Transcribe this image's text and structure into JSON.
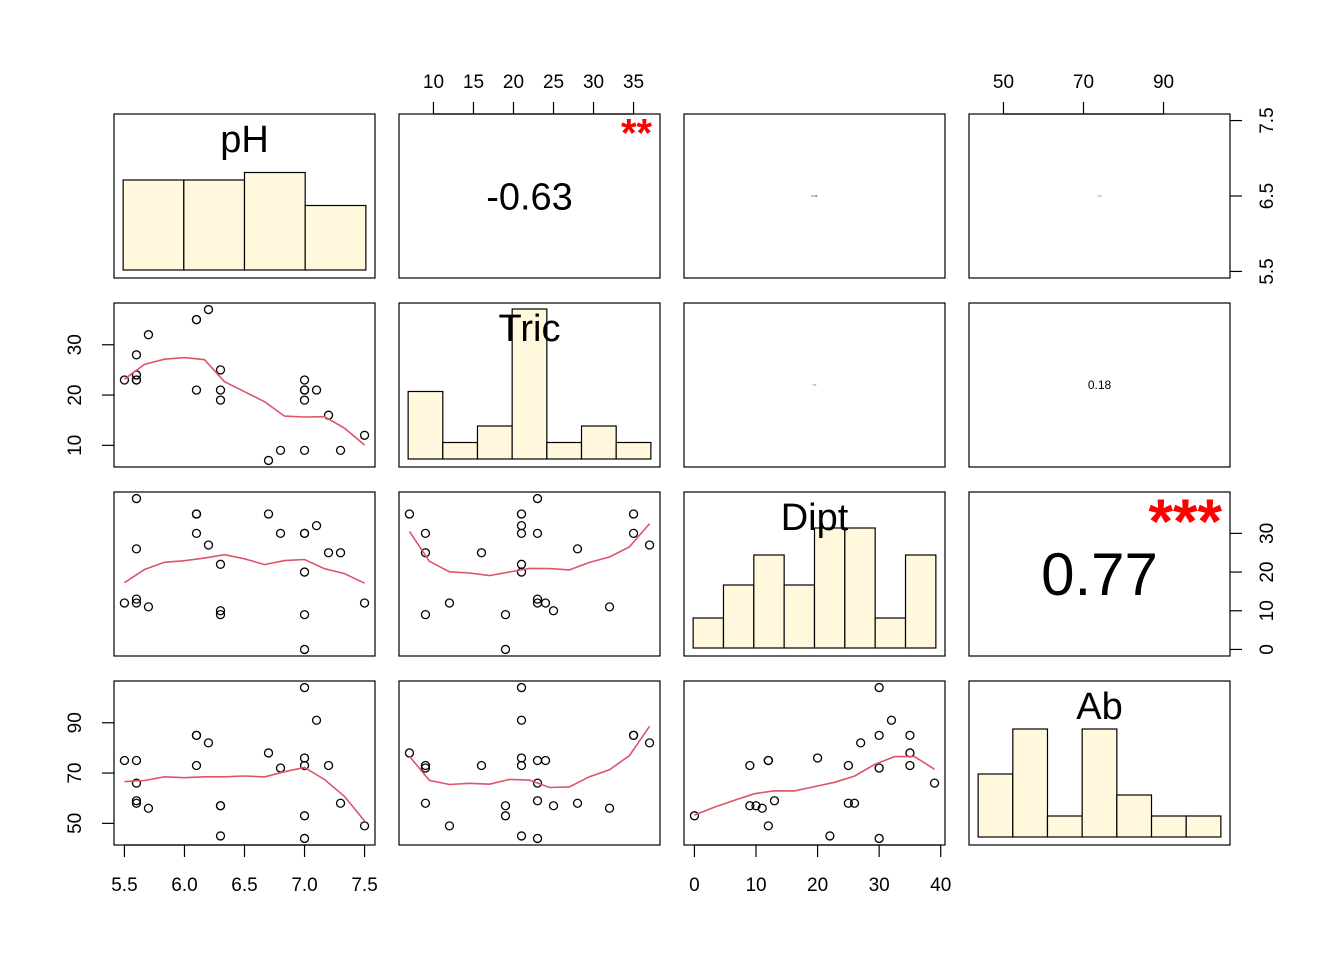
{
  "chart_data": {
    "type": "scatter",
    "variables": [
      "pH",
      "Tric",
      "Dipt",
      "Ab"
    ],
    "colors": {
      "hist_fill": "#FFF8DC",
      "smooth_line": "#DF536B",
      "stars": "#FF0000",
      "points": "#000000",
      "axes": "#000000"
    },
    "histograms": {
      "pH": [
        0.6,
        0.6,
        0.65,
        0.43
      ],
      "Tric": [
        0.45,
        0.11,
        0.22,
        1.0,
        0.11,
        0.22,
        0.11
      ],
      "Dipt": [
        0.2,
        0.42,
        0.62,
        0.42,
        0.8,
        0.8,
        0.2,
        0.62
      ],
      "Ab": [
        0.42,
        0.72,
        0.14,
        0.72,
        0.28,
        0.14,
        0.14
      ]
    },
    "correlations": [
      {
        "row": 0,
        "col": 1,
        "label": "-0.63",
        "stars": "**",
        "size": 38
      },
      {
        "row": 0,
        "col": 2,
        "label": "0.05",
        "stars": "",
        "size": 3
      },
      {
        "row": 0,
        "col": 3,
        "label": "0.02",
        "stars": "",
        "size": 2
      },
      {
        "row": 1,
        "col": 2,
        "label": "0.01",
        "stars": "",
        "size": 2
      },
      {
        "row": 1,
        "col": 3,
        "label": "0.18",
        "stars": "",
        "size": 12
      },
      {
        "row": 2,
        "col": 3,
        "label": "0.77",
        "stars": "***",
        "size": 60
      }
    ],
    "observations": {
      "pH": [
        5.5,
        5.6,
        5.6,
        5.6,
        5.7,
        6.1,
        6.1,
        6.2,
        6.1,
        6.3,
        6.3,
        6.7,
        6.8,
        7.0,
        7.0,
        7.0,
        7.0,
        7.0,
        7.1,
        7.2,
        7.3,
        7.5,
        6.3,
        5.6
      ],
      "Tric": [
        23,
        24,
        28,
        23,
        32,
        35,
        21,
        37,
        35,
        25,
        21,
        7,
        9,
        23,
        21,
        19,
        9,
        21,
        21,
        16,
        9,
        12,
        19,
        23
      ],
      "Dipt": [
        12,
        12,
        26,
        13,
        11,
        30,
        35,
        27,
        35,
        10,
        22,
        35,
        30,
        30,
        20,
        0,
        9,
        30,
        32,
        25,
        25,
        12,
        9,
        39
      ],
      "Ab": [
        75,
        75,
        58,
        59,
        56,
        85,
        73,
        82,
        85,
        57,
        45,
        78,
        72,
        44,
        76,
        53,
        73,
        104,
        91,
        73,
        58,
        49,
        57,
        66
      ]
    },
    "ranges": {
      "pH": [
        5.5,
        7.5
      ],
      "Tric": [
        7,
        37
      ],
      "Dipt": [
        0,
        39
      ],
      "Ab": [
        44,
        104
      ]
    },
    "ticks": {
      "pH": [
        5.5,
        6.0,
        6.5,
        7.0,
        7.5
      ],
      "Tric": [
        10,
        15,
        20,
        25,
        30,
        35
      ],
      "Dipt": [
        0,
        10,
        20,
        30,
        40
      ],
      "Ab": [
        50,
        70,
        90
      ]
    },
    "tick_labels": {
      "pH": [
        "5.5",
        "6.0",
        "6.5",
        "7.0",
        "7.5"
      ],
      "Tric": [
        "10",
        "15",
        "20",
        "25",
        "30",
        "35"
      ],
      "Dipt": [
        "0",
        "10",
        "20",
        "30",
        "40"
      ],
      "Ab": [
        "50",
        "70",
        "90"
      ]
    },
    "y_ticks": {
      "pH": [
        5.5,
        6.5,
        7.5
      ],
      "Tric": [
        10,
        20,
        30
      ],
      "Dipt": [
        0,
        10,
        20,
        30
      ],
      "Ab": [
        50,
        70,
        90
      ]
    },
    "y_tick_labels": {
      "pH": [
        "5.5",
        "6.5",
        "7.5"
      ],
      "Tric": [
        "10",
        "20",
        "30"
      ],
      "Dipt": [
        "0",
        "10",
        "20",
        "30"
      ],
      "Ab": [
        "50",
        "70",
        "90"
      ]
    },
    "axis_placement": {
      "bottom": [
        "pH",
        null,
        "Dipt",
        null
      ],
      "top": [
        null,
        "Tric",
        null,
        "Ab"
      ],
      "left": [
        null,
        "Tric",
        null,
        "Ab"
      ],
      "right": [
        "pH",
        null,
        "Dipt",
        null
      ]
    },
    "grid": false,
    "legend": "none"
  }
}
